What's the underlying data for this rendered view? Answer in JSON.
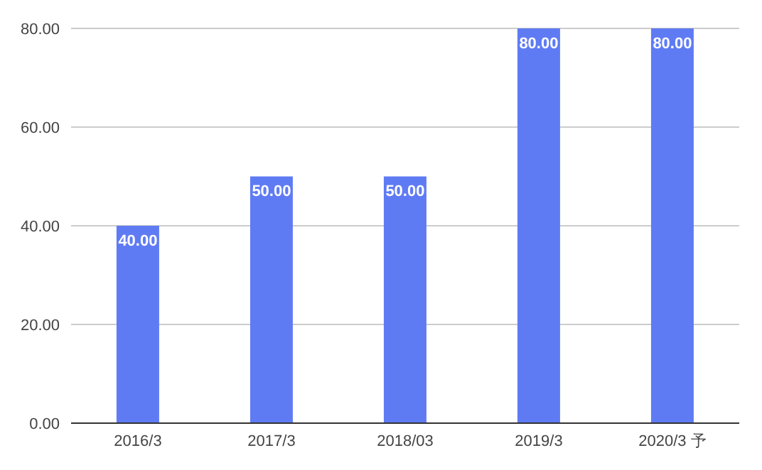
{
  "chart_data": {
    "type": "bar",
    "categories": [
      "2016/3",
      "2017/3",
      "2018/03",
      "2019/3",
      "2020/3 予"
    ],
    "values": [
      40,
      50,
      50,
      80,
      80
    ],
    "value_labels": [
      "40.00",
      "50.00",
      "50.00",
      "80.00",
      "80.00"
    ],
    "color": "#5f7bf4",
    "ylim": [
      0,
      80
    ],
    "yticks": [
      {
        "value": 0,
        "label": "0.00"
      },
      {
        "value": 20,
        "label": "20.00"
      },
      {
        "value": 40,
        "label": "40.00"
      },
      {
        "value": 60,
        "label": "60.00"
      },
      {
        "value": 80,
        "label": "80.00"
      }
    ],
    "grid": "y"
  }
}
